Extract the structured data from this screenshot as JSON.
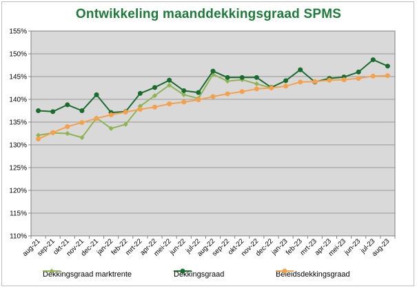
{
  "chart_data": {
    "type": "line",
    "title": "Ontwikkeling maanddekkingsgraad SPMS",
    "xlabel": "",
    "ylabel": "",
    "ylim": [
      110,
      155
    ],
    "y_ticks": [
      "110%",
      "115%",
      "120%",
      "125%",
      "130%",
      "135%",
      "140%",
      "145%",
      "150%",
      "155%"
    ],
    "grid": true,
    "legend_position": "bottom",
    "categories": [
      "aug-21",
      "sep-21",
      "okt-21",
      "nov-21",
      "dec-21",
      "jan-22",
      "feb-22",
      "mrt-22",
      "apr-22",
      "mei-22",
      "jun-22",
      "jul-22",
      "aug-22",
      "sep-22",
      "okt-22",
      "nov-22",
      "dec-22",
      "jan-23",
      "feb-23",
      "mrt-23",
      "apr-23",
      "mei-23",
      "jun-23",
      "jul-23",
      "aug-23"
    ],
    "series": [
      {
        "name": "Dekkingsgraad marktrente",
        "color": "#8fb352",
        "values": [
          132.1,
          132.6,
          132.5,
          131.6,
          135.9,
          133.6,
          134.5,
          138.5,
          140.8,
          143.1,
          141.0,
          140.2,
          145.5,
          144.0,
          144.3,
          143.4,
          142.5,
          null,
          null,
          null,
          null,
          null,
          null,
          null,
          null
        ]
      },
      {
        "name": "Dekkingsgraad",
        "color": "#1a6b2e",
        "values": [
          137.5,
          137.3,
          138.8,
          137.5,
          141.0,
          137.1,
          137.3,
          141.3,
          142.6,
          144.2,
          141.9,
          141.5,
          146.2,
          144.8,
          144.8,
          144.8,
          142.6,
          144.1,
          146.5,
          143.8,
          144.6,
          144.9,
          146.0,
          148.7,
          147.3
        ]
      },
      {
        "name": "Beleidsdekkingsgraad",
        "color": "#f5a04a",
        "values": [
          131.3,
          132.7,
          134.0,
          134.9,
          135.8,
          136.6,
          137.2,
          137.8,
          138.3,
          139.0,
          139.4,
          139.9,
          140.6,
          141.2,
          141.7,
          142.3,
          142.5,
          142.9,
          143.8,
          143.9,
          144.2,
          144.3,
          144.6,
          145.1,
          145.2
        ]
      }
    ]
  }
}
